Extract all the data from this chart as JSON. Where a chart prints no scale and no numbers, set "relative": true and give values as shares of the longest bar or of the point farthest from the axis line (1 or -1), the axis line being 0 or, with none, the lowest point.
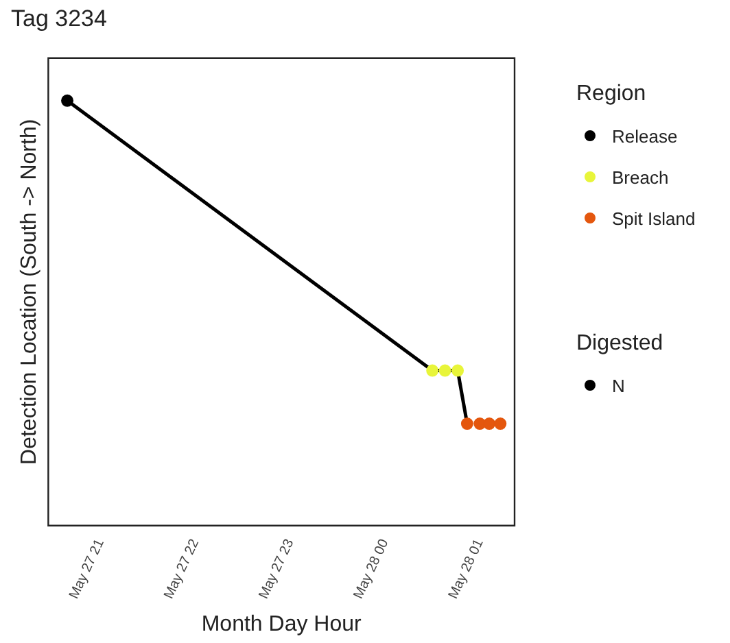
{
  "chart_data": {
    "type": "scatter",
    "title": "Tag 3234",
    "xlabel": "Month Day Hour",
    "ylabel": "Detection Location (South -> North)",
    "legend_title": "Region",
    "legend": "right",
    "relative": true,
    "grid": false,
    "marker": "circle",
    "xlim": [
      "--05-27T20:27",
      "--05-28T01:22"
    ],
    "xticks": [
      {
        "value": "--05-27T21:00",
        "label": "May 27 21"
      },
      {
        "value": "--05-27T22:00",
        "label": "May 27 22"
      },
      {
        "value": "--05-27T23:00",
        "label": "May 27 23"
      },
      {
        "value": "--05-28T00:00",
        "label": "May 28 00"
      },
      {
        "value": "--05-28T01:00",
        "label": "May 28 01"
      }
    ],
    "annotations": [
      "Digested",
      "N"
    ],
    "series": [
      {
        "type": "line",
        "marker": "none",
        "color": "#000000",
        "x": [
          "--05-27T20:39",
          "--05-28T00:30",
          "--05-28T00:38",
          "--05-28T00:46",
          "--05-28T00:52"
        ],
        "values": [
          1,
          0.365,
          0.365,
          0.365,
          0.24
        ]
      },
      {
        "name": "Release",
        "color": "#000000",
        "x": [
          "--05-27T20:39"
        ],
        "values": [
          1
        ]
      },
      {
        "name": "Breach",
        "color": "#e8f53a",
        "x": [
          "--05-28T00:30",
          "--05-28T00:38",
          "--05-28T00:46"
        ],
        "values": [
          0.365,
          0.365,
          0.365
        ]
      },
      {
        "name": "Spit Island",
        "color": "#e4570e",
        "x": [
          "--05-28T00:52",
          "--05-28T01:00",
          "--05-28T01:06",
          "--05-28T01:13"
        ],
        "values": [
          0.24,
          0.24,
          0.24,
          0.24
        ]
      }
    ]
  }
}
